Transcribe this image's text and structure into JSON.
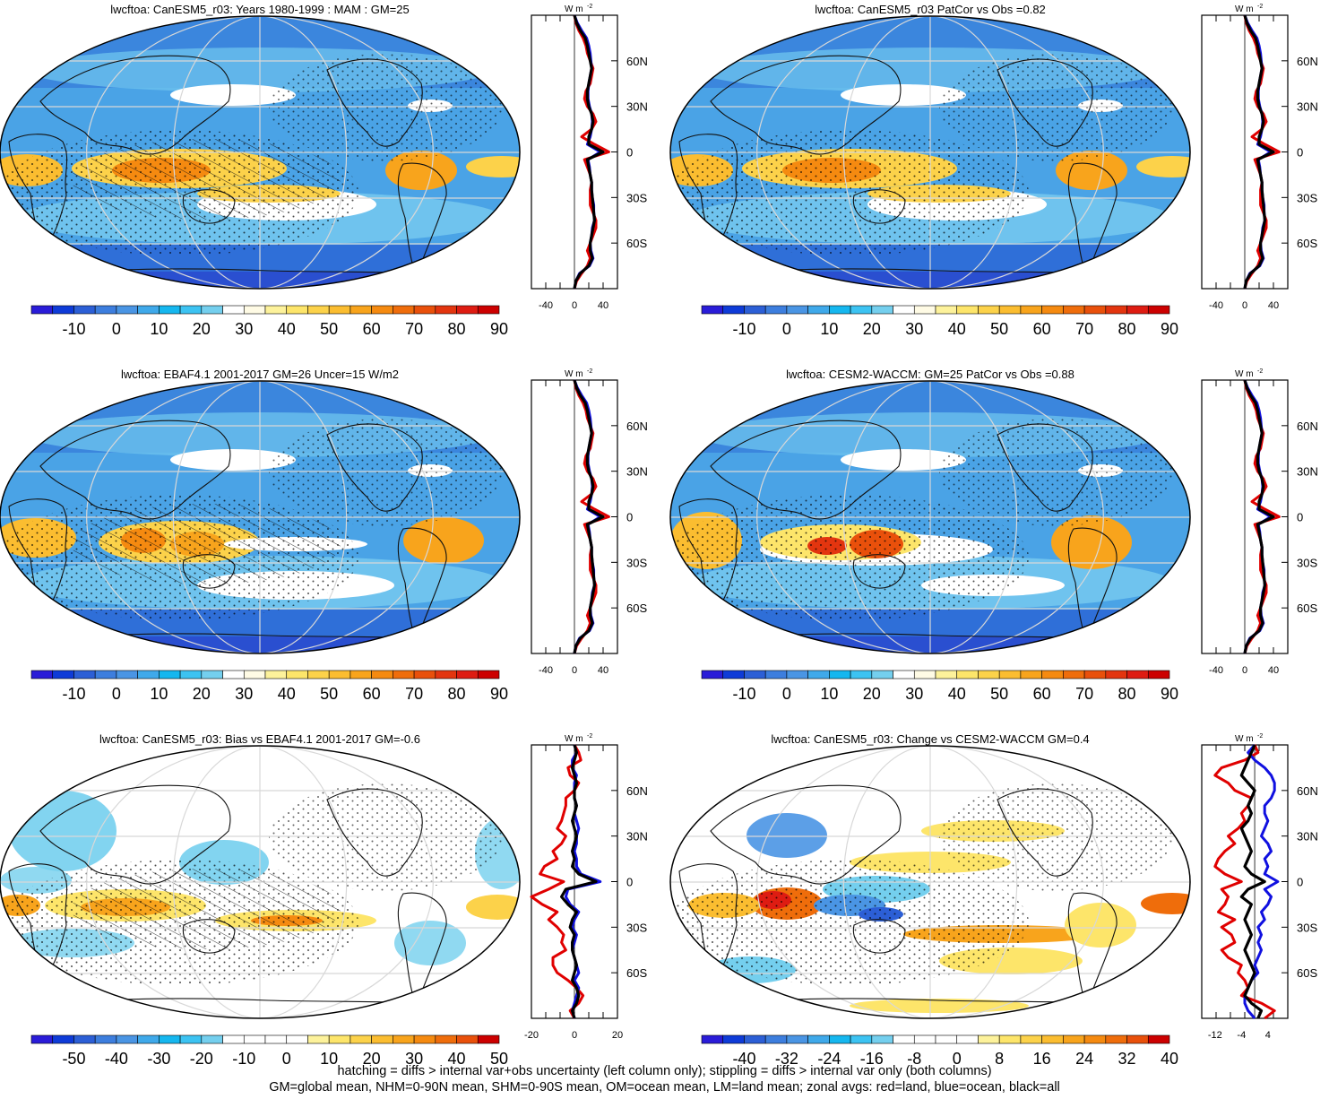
{
  "panels": [
    {
      "title": "lwcftoa: CanESM5_r03: Years 1980-1999 : MAM : GM=25",
      "cb_labels": [
        "-10",
        "0",
        "10",
        "20",
        "30",
        "40",
        "50",
        "60",
        "70",
        "80",
        "90"
      ],
      "palette": "full",
      "profile_ticks": [
        "-40",
        "0",
        "40"
      ],
      "profile_mode": "total",
      "hatch": true
    },
    {
      "title": "lwcftoa: CanESM5_r03 PatCor vs Obs =0.82",
      "cb_labels": [
        "-10",
        "0",
        "10",
        "20",
        "30",
        "40",
        "50",
        "60",
        "70",
        "80",
        "90"
      ],
      "palette": "full",
      "profile_ticks": [
        "-40",
        "0",
        "40"
      ],
      "profile_mode": "total",
      "hatch": false
    },
    {
      "title": "lwcftoa: EBAF4.1 2001-2017 GM=26 Uncer=15 W/m2",
      "cb_labels": [
        "-10",
        "0",
        "10",
        "20",
        "30",
        "40",
        "50",
        "60",
        "70",
        "80",
        "90"
      ],
      "palette": "full",
      "profile_ticks": [
        "-40",
        "0",
        "40"
      ],
      "profile_mode": "total",
      "hatch": true
    },
    {
      "title": "lwcftoa: CESM2-WACCM: GM=25 PatCor vs Obs =0.88",
      "cb_labels": [
        "-10",
        "0",
        "10",
        "20",
        "30",
        "40",
        "50",
        "60",
        "70",
        "80",
        "90"
      ],
      "palette": "full",
      "profile_ticks": [
        "-40",
        "0",
        "40"
      ],
      "profile_mode": "total",
      "hatch": false
    },
    {
      "title": "lwcftoa: CanESM5_r03: Bias vs EBAF4.1 2001-2017 GM=-0.6",
      "cb_labels": [
        "-50",
        "-40",
        "-30",
        "-20",
        "-10",
        "0",
        "10",
        "20",
        "30",
        "40",
        "50"
      ],
      "palette": "diff",
      "profile_ticks": [
        "-20",
        "0",
        "20"
      ],
      "profile_mode": "bias",
      "hatch": true
    },
    {
      "title": "lwcftoa: CanESM5_r03: Change vs CESM2-WACCM GM=0.4",
      "cb_labels": [
        "-40",
        "-32",
        "-24",
        "-16",
        "-8",
        "0",
        "8",
        "16",
        "24",
        "32",
        "40"
      ],
      "palette": "diff",
      "profile_ticks": [
        "-12",
        "-4",
        "4"
      ],
      "profile_mode": "change",
      "hatch": false
    }
  ],
  "lat_labels": [
    "60N",
    "30N",
    "0",
    "30S",
    "60S"
  ],
  "units_label": "W m",
  "units_exp": "-2",
  "footer": {
    "line1": "hatching = diffs > internal var+obs uncertainty (left column only); stippling = diffs > internal var only (both columns)",
    "line2": "GM=global mean, NHM=0-90N mean, SHM=0-90S mean, OM=ocean mean, LM=land mean; zonal avgs: red=land, blue=ocean, black=all"
  },
  "colors": {
    "profile_land": "#e00000",
    "profile_ocean": "#1010e0",
    "profile_all": "#000000"
  }
}
